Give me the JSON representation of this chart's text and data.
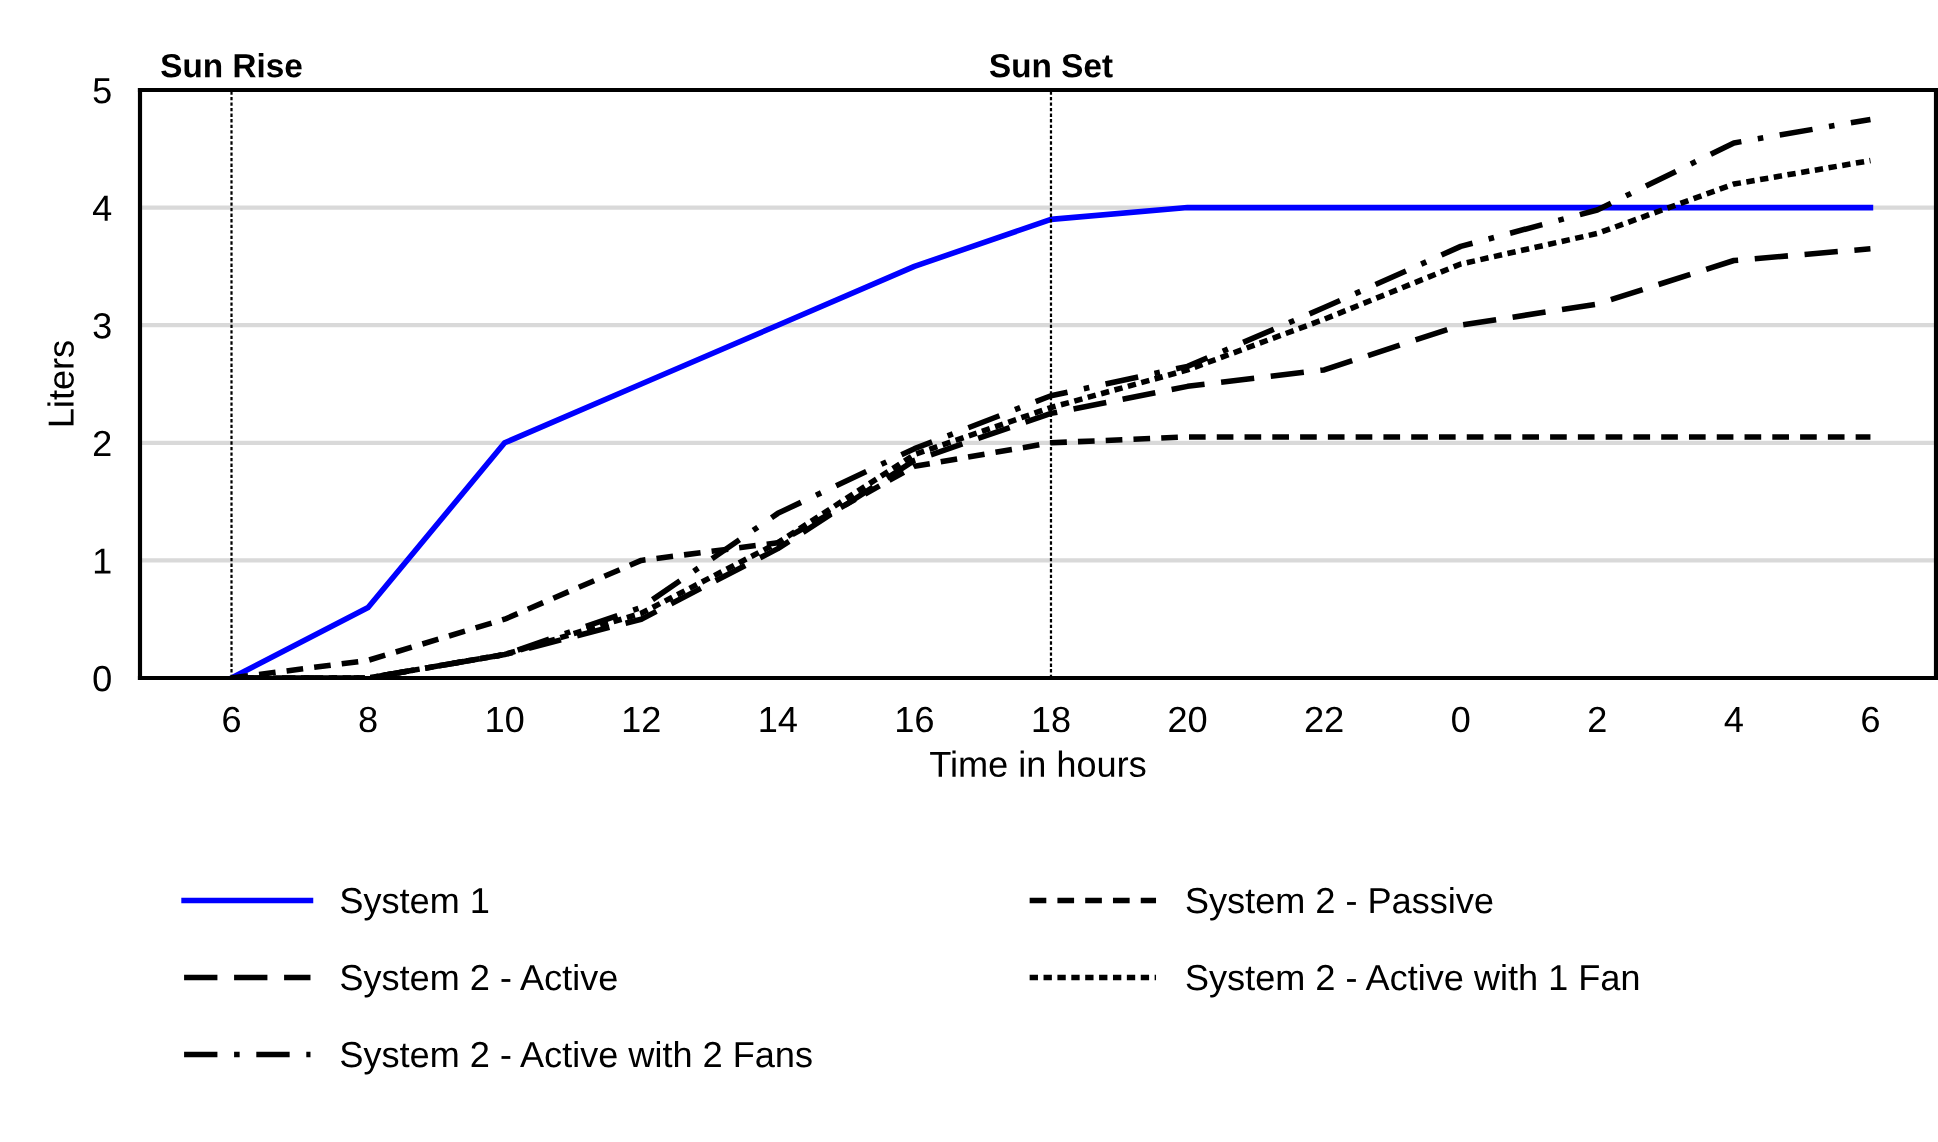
{
  "chart_data": {
    "type": "line",
    "xlabel": "Time in hours",
    "ylabel": "Liters",
    "categories": [
      "6",
      "8",
      "10",
      "12",
      "14",
      "16",
      "18",
      "20",
      "22",
      "0",
      "2",
      "4",
      "6"
    ],
    "ylim": [
      0,
      5
    ],
    "yticks": [
      0,
      1,
      2,
      3,
      4,
      5
    ],
    "grid": "y",
    "legend": "bottom",
    "marker": "none",
    "ref_lines": [
      {
        "axis": "x",
        "value": "6",
        "label": "Sun Rise",
        "color": "#000000",
        "line_style": "dotted"
      },
      {
        "axis": "x",
        "value": "18",
        "label": "Sun Set",
        "color": "#000000",
        "line_style": "dotted"
      }
    ],
    "series": [
      {
        "name": "System 1",
        "color": "#0000ff",
        "line_style": "solid",
        "values": [
          0,
          0.6,
          2.0,
          2.5,
          3.0,
          3.5,
          3.9,
          4.0,
          4.0,
          4.0,
          4.0,
          4.0,
          4.0
        ]
      },
      {
        "name": "System 2 - Passive",
        "color": "#000000",
        "line_style": "dashed",
        "values": [
          0,
          0.15,
          0.5,
          1.0,
          1.15,
          1.8,
          2.0,
          2.05,
          2.05,
          2.05,
          2.05,
          2.05,
          2.05
        ]
      },
      {
        "name": "System 2 - Active",
        "color": "#000000",
        "line_style": "longdash",
        "values": [
          0,
          0,
          0.2,
          0.5,
          1.1,
          1.85,
          2.25,
          2.48,
          2.62,
          3.0,
          3.18,
          3.55,
          3.65
        ]
      },
      {
        "name": "System 2 - Active with 1 Fan",
        "color": "#000000",
        "line_style": "dotted",
        "values": [
          0,
          0,
          0.2,
          0.55,
          1.15,
          1.9,
          2.3,
          2.62,
          3.05,
          3.52,
          3.78,
          4.2,
          4.4
        ]
      },
      {
        "name": "System 2 - Active with 2 Fans",
        "color": "#000000",
        "line_style": "dashdot",
        "values": [
          0,
          0,
          0.2,
          0.6,
          1.4,
          1.95,
          2.4,
          2.65,
          3.15,
          3.67,
          3.98,
          4.55,
          4.75
        ]
      }
    ]
  }
}
